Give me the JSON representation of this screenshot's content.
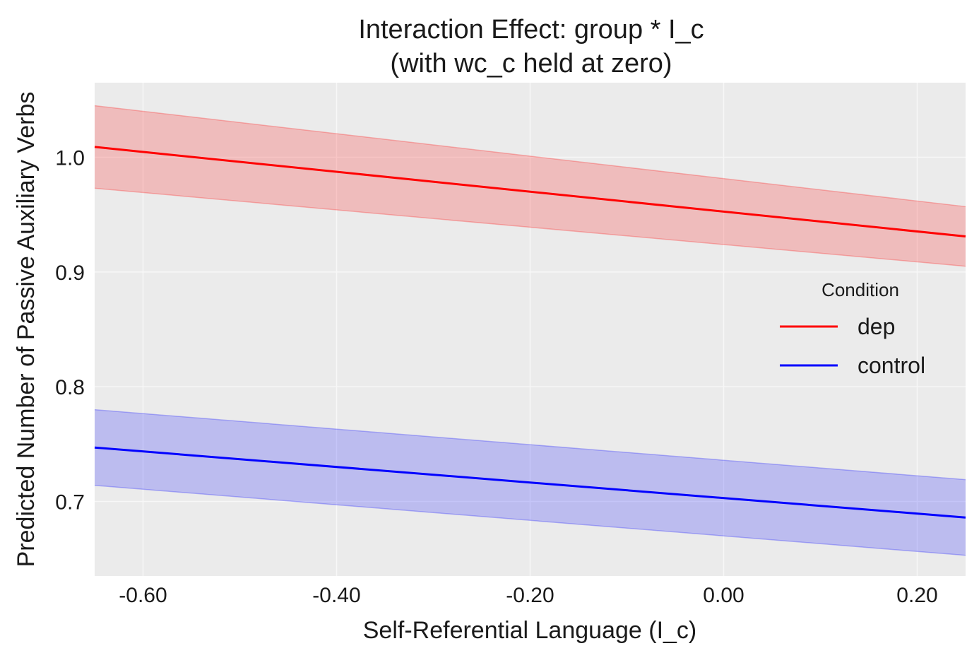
{
  "chart_data": {
    "type": "line",
    "title": "Interaction Effect: group * I_c",
    "subtitle": "(with wc_c held at zero)",
    "xlabel": "Self-Referential Language (I_c)",
    "ylabel": "Predicted Number of Passive Auxiliary Verbs",
    "xlim": [
      -0.65,
      0.25
    ],
    "ylim": [
      0.635,
      1.065
    ],
    "x_ticks": [
      -0.6,
      -0.4,
      -0.2,
      0.0,
      0.2
    ],
    "x_tick_labels": [
      "-0.60",
      "-0.40",
      "-0.20",
      "0.00",
      "0.20"
    ],
    "y_ticks": [
      0.7,
      0.8,
      0.9,
      1.0
    ],
    "y_tick_labels": [
      "0.7",
      "0.8",
      "0.9",
      "1.0"
    ],
    "grid": true,
    "legend": {
      "title": "Condition",
      "placement": "center-right"
    },
    "series": [
      {
        "name": "dep",
        "color": "#ff0000",
        "band_color": "#ff0000",
        "x": [
          -0.65,
          0.25
        ],
        "y": [
          1.009,
          0.931
        ],
        "lower": [
          0.973,
          0.905
        ],
        "upper": [
          1.045,
          0.957
        ]
      },
      {
        "name": "control",
        "color": "#0000ff",
        "band_color": "#0000ff",
        "x": [
          -0.65,
          0.25
        ],
        "y": [
          0.747,
          0.686
        ],
        "lower": [
          0.714,
          0.653
        ],
        "upper": [
          0.78,
          0.719
        ]
      }
    ]
  }
}
